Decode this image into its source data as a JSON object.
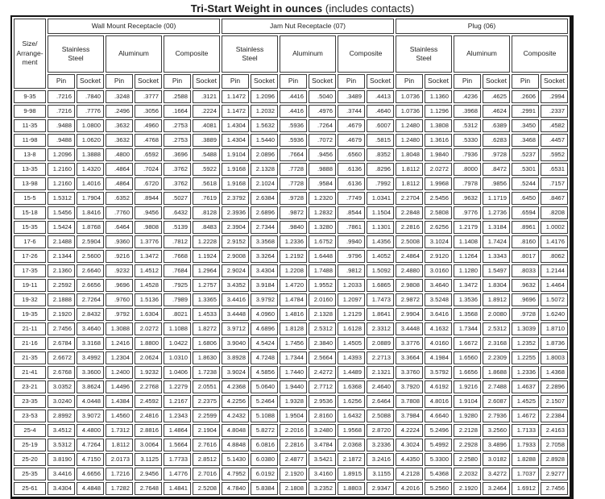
{
  "title": {
    "bold": "Tri-Start Weight in ounces",
    "subtitle": " (includes contacts)"
  },
  "colors": {
    "text": "#1d1d1d",
    "border": "#3c3c3c",
    "outer_border": "#151515",
    "background": "#ffffff"
  },
  "table": {
    "corner_header": "Size/\nArrange-\nment",
    "groups": [
      {
        "label": "Wall Mount Receptacle (00)"
      },
      {
        "label": "Jam Nut Receptacle (07)"
      },
      {
        "label": "Plug (06)"
      }
    ],
    "materials": [
      "Stainless\nSteel",
      "Aluminum",
      "Composite"
    ],
    "pin_socket": [
      "Pin",
      "Socket"
    ],
    "rows": [
      {
        "size": "9-35",
        "values": [
          ".7216",
          ".7840",
          ".3248",
          ".3777",
          ".2588",
          ".3121",
          "1.1472",
          "1.2096",
          ".4416",
          ".5040",
          ".3489",
          ".4413",
          "1.0736",
          "1.1360",
          ".4236",
          ".4625",
          ".2606",
          ".2994"
        ]
      },
      {
        "size": "9-98",
        "values": [
          ".7216",
          ".7776",
          ".2496",
          ".3056",
          ".1664",
          ".2224",
          "1.1472",
          "1.2032",
          ".4416",
          ".4976",
          ".3744",
          ".4640",
          "1.0736",
          "1.1296",
          ".3968",
          ".4624",
          ".2991",
          ".2337"
        ]
      },
      {
        "size": "11-35",
        "values": [
          ".9488",
          "1.0800",
          ".3632",
          ".4960",
          ".2753",
          ".4081",
          "1.4304",
          "1.5632",
          ".5936",
          ".7264",
          ".4679",
          ".6007",
          "1.2480",
          "1.3808",
          ".5312",
          ".6389",
          ".3450",
          ".4582"
        ]
      },
      {
        "size": "11-98",
        "values": [
          ".9488",
          "1.0620",
          ".3632",
          ".4768",
          ".2753",
          ".3889",
          "1.4304",
          "1.5440",
          ".5936",
          ".7072",
          ".4679",
          ".5815",
          "1.2480",
          "1.3616",
          ".5330",
          ".6283",
          ".3468",
          ".4457"
        ]
      },
      {
        "size": "13-8",
        "values": [
          "1.2096",
          "1.3888",
          ".4800",
          ".6592",
          ".3696",
          ".5488",
          "1.9104",
          "2.0896",
          ".7664",
          ".9456",
          ".6560",
          ".8352",
          "1.8048",
          "1.9840",
          ".7936",
          ".9728",
          ".5237",
          ".5952"
        ]
      },
      {
        "size": "13-35",
        "values": [
          "1.2160",
          "1.4320",
          ".4864",
          ".7024",
          ".3762",
          ".5922",
          "1.9168",
          "2.1328",
          ".7728",
          ".9888",
          ".6136",
          ".8296",
          "1.8112",
          "2.0272",
          ".8000",
          ".8472",
          ".5301",
          ".6531"
        ]
      },
      {
        "size": "13-98",
        "values": [
          "1.2160",
          "1.4016",
          ".4864",
          ".6720",
          ".3762",
          ".5618",
          "1.9168",
          "2.1024",
          ".7728",
          ".9584",
          ".6136",
          ".7992",
          "1.8112",
          "1.9968",
          ".7978",
          ".9856",
          ".5244",
          ".7157"
        ]
      },
      {
        "size": "15-5",
        "values": [
          "1.5312",
          "1.7904",
          ".6352",
          ".8944",
          ".5027",
          ".7619",
          "2.3792",
          "2.6384",
          ".9728",
          "1.2320",
          ".7749",
          "1.0341",
          "2.2704",
          "2.5456",
          ".9632",
          "1.1719",
          ".6450",
          ".8467"
        ]
      },
      {
        "size": "15-18",
        "values": [
          "1.5456",
          "1.8416",
          ".7760",
          ".9456",
          ".6432",
          ".8128",
          "2.3936",
          "2.6896",
          ".9872",
          "1.2832",
          ".8544",
          "1.1504",
          "2.2848",
          "2.5808",
          ".9776",
          "1.2736",
          ".6594",
          ".8208"
        ]
      },
      {
        "size": "15-35",
        "values": [
          "1.5424",
          "1.8768",
          ".6464",
          ".9808",
          ".5139",
          ".8483",
          "2.3904",
          "2.7344",
          ".9840",
          "1.3280",
          ".7861",
          "1.1301",
          "2.2816",
          "2.6256",
          "1.2179",
          "1.3184",
          ".8961",
          "1.0002"
        ]
      },
      {
        "size": "17-6",
        "values": [
          "2.1488",
          "2.5904",
          ".9360",
          "1.3776",
          ".7812",
          "1.2228",
          "2.9152",
          "3.3568",
          "1.2336",
          "1.6752",
          ".9940",
          "1.4356",
          "2.5008",
          "3.1024",
          "1.1408",
          "1.7424",
          ".8160",
          "1.4176"
        ]
      },
      {
        "size": "17-26",
        "values": [
          "2.1344",
          "2.5600",
          ".9216",
          "1.3472",
          ".7668",
          "1.1924",
          "2.9008",
          "3.3264",
          "1.2192",
          "1.6448",
          ".9796",
          "1.4052",
          "2.4864",
          "2.9120",
          "1.1264",
          "1.3343",
          ".8017",
          ".8062"
        ]
      },
      {
        "size": "17-35",
        "values": [
          "2.1360",
          "2.6640",
          ".9232",
          "1.4512",
          ".7684",
          "1.2964",
          "2.9024",
          "3.4304",
          "1.2208",
          "1.7488",
          ".9812",
          "1.5092",
          "2.4880",
          "3.0160",
          "1.1280",
          "1.5497",
          ".8033",
          "1.2144"
        ]
      },
      {
        "size": "19-11",
        "values": [
          "2.2592",
          "2.6656",
          ".9696",
          "1.4528",
          ".7925",
          "1.2757",
          "3.4352",
          "3.9184",
          "1.4720",
          "1.9552",
          "1.2033",
          "1.6865",
          "2.9808",
          "3.4640",
          "1.3472",
          "1.8304",
          ".9632",
          "1.4464"
        ]
      },
      {
        "size": "19-32",
        "values": [
          "2.1888",
          "2.7264",
          ".9760",
          "1.5136",
          ".7989",
          "1.3365",
          "3.4416",
          "3.9792",
          "1.4784",
          "2.0160",
          "1.2097",
          "1.7473",
          "2.9872",
          "3.5248",
          "1.3536",
          "1.8912",
          ".9696",
          "1.5072"
        ]
      },
      {
        "size": "19-35",
        "values": [
          "2.1920",
          "2.8432",
          ".9792",
          "1.6304",
          ".8021",
          "1.4533",
          "3.4448",
          "4.0960",
          "1.4816",
          "2.1328",
          "1.2129",
          "1.8641",
          "2.9904",
          "3.6416",
          "1.3568",
          "2.0080",
          ".9728",
          "1.6240"
        ]
      },
      {
        "size": "21-11",
        "values": [
          "2.7456",
          "3.4640",
          "1.3088",
          "2.0272",
          "1.1088",
          "1.8272",
          "3.9712",
          "4.6896",
          "1.8128",
          "2.5312",
          "1.6128",
          "2.3312",
          "3.4448",
          "4.1632",
          "1.7344",
          "2.5312",
          "1.3039",
          "1.8710"
        ]
      },
      {
        "size": "21-16",
        "values": [
          "2.6784",
          "3.3168",
          "1.2416",
          "1.8800",
          "1.0422",
          "1.6806",
          "3.9040",
          "4.5424",
          "1.7456",
          "2.3840",
          "1.4505",
          "2.0889",
          "3.3776",
          "4.0160",
          "1.6672",
          "2.3168",
          "1.2352",
          "1.8736"
        ]
      },
      {
        "size": "21-35",
        "values": [
          "2.6672",
          "3.4992",
          "1.2304",
          "2.0624",
          "1.0310",
          "1.8630",
          "3.8928",
          "4.7248",
          "1.7344",
          "2.5664",
          "1.4393",
          "2.2713",
          "3.3664",
          "4.1984",
          "1.6560",
          "2.2309",
          "1.2255",
          "1.8003"
        ]
      },
      {
        "size": "21-41",
        "values": [
          "2.6768",
          "3.3600",
          "1.2400",
          "1.9232",
          "1.0406",
          "1.7238",
          "3.9024",
          "4.5856",
          "1.7440",
          "2.4272",
          "1.4489",
          "2.1321",
          "3.3760",
          "3.5792",
          "1.6656",
          "1.8688",
          "1.2336",
          "1.4368"
        ]
      },
      {
        "size": "23-21",
        "values": [
          "3.0352",
          "3.8624",
          "1.4496",
          "2.2768",
          "1.2279",
          "2.0551",
          "4.2368",
          "5.0640",
          "1.9440",
          "2.7712",
          "1.6368",
          "2.4640",
          "3.7920",
          "4.6192",
          "1.9216",
          "2.7488",
          "1.4637",
          "2.2896"
        ]
      },
      {
        "size": "23-35",
        "values": [
          "3.0240",
          "4.0448",
          "1.4384",
          "2.4592",
          "1.2167",
          "2.2375",
          "4.2256",
          "5.2464",
          "1.9328",
          "2.9536",
          "1.6256",
          "2.6464",
          "3.7808",
          "4.8016",
          "1.9104",
          "2.6087",
          "1.4525",
          "2.1507"
        ]
      },
      {
        "size": "23-53",
        "values": [
          "2.8992",
          "3.9072",
          "1.4560",
          "2.4816",
          "1.2343",
          "2.2599",
          "4.2432",
          "5.1088",
          "1.9504",
          "2.8160",
          "1.6432",
          "2.5088",
          "3.7984",
          "4.6640",
          "1.9280",
          "2.7936",
          "1.4672",
          "2.2384"
        ]
      },
      {
        "size": "25-4",
        "values": [
          "3.4512",
          "4.4800",
          "1.7312",
          "2.8816",
          "1.4864",
          "2.1904",
          "4.8048",
          "5.8272",
          "2.2016",
          "3.2480",
          "1.9568",
          "2.8720",
          "4.2224",
          "5.2496",
          "2.2128",
          "3.2560",
          "1.7133",
          "2.4163"
        ]
      },
      {
        "size": "25-19",
        "values": [
          "3.5312",
          "4.7264",
          "1.8112",
          "3.0064",
          "1.5664",
          "2.7616",
          "4.8848",
          "6.0816",
          "2.2816",
          "3.4784",
          "2.0368",
          "3.2336",
          "4.3024",
          "5.4992",
          "2.2928",
          "3.4896",
          "1.7933",
          "2.7058"
        ]
      },
      {
        "size": "25-20",
        "values": [
          "3.8190",
          "4.7150",
          "2.0173",
          "3.1125",
          "1.7733",
          "2.8512",
          "5.1430",
          "6.0380",
          "2.4877",
          "3.5421",
          "2.1872",
          "3.2416",
          "4.4350",
          "5.3300",
          "2.2580",
          "3.0182",
          "1.8288",
          "2.8928"
        ]
      },
      {
        "size": "25-35",
        "values": [
          "3.4416",
          "4.6656",
          "1.7216",
          "2.9456",
          "1.4776",
          "2.7016",
          "4.7952",
          "6.0192",
          "2.1920",
          "3.4160",
          "1.8915",
          "3.1155",
          "4.2128",
          "5.4368",
          "2.2032",
          "3.4272",
          "1.7037",
          "2.9277"
        ]
      },
      {
        "size": "25-61",
        "values": [
          "3.4304",
          "4.4848",
          "1.7282",
          "2.7648",
          "1.4841",
          "2.5208",
          "4.7840",
          "5.8384",
          "2.1808",
          "3.2352",
          "1.8803",
          "2.9347",
          "4.2016",
          "5.2560",
          "2.1920",
          "3.2464",
          "1.6912",
          "2.7456"
        ]
      }
    ]
  }
}
